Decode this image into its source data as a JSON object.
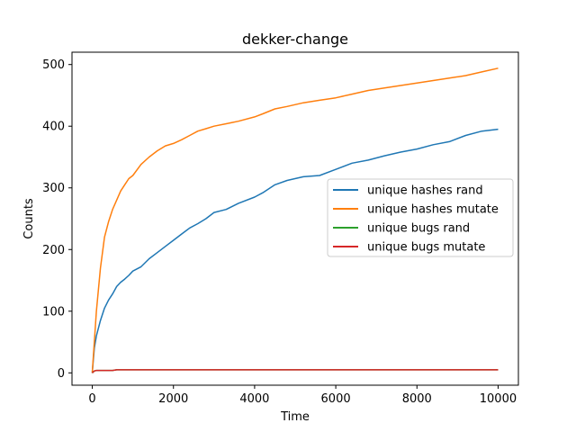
{
  "chart_data": {
    "type": "line",
    "title": "dekker-change",
    "xlabel": "Time",
    "ylabel": "Counts",
    "xlim": [
      -500,
      10500
    ],
    "ylim": [
      -20,
      520
    ],
    "xticks": [
      0,
      2000,
      4000,
      6000,
      8000,
      10000
    ],
    "yticks": [
      0,
      100,
      200,
      300,
      400,
      500
    ],
    "grid": false,
    "legend_position": "center-right",
    "series": [
      {
        "name": "unique hashes rand",
        "color": "#1f77b4",
        "x": [
          0,
          50,
          100,
          200,
          300,
          400,
          500,
          600,
          700,
          800,
          900,
          1000,
          1200,
          1400,
          1600,
          1800,
          2000,
          2200,
          2400,
          2600,
          2800,
          3000,
          3300,
          3600,
          4000,
          4200,
          4500,
          4800,
          5200,
          5600,
          6000,
          6400,
          6800,
          7200,
          7600,
          8000,
          8400,
          8800,
          9200,
          9600,
          10000
        ],
        "y": [
          0,
          40,
          60,
          85,
          105,
          118,
          128,
          140,
          147,
          152,
          158,
          165,
          172,
          185,
          195,
          205,
          215,
          225,
          235,
          242,
          250,
          260,
          265,
          275,
          285,
          292,
          305,
          312,
          318,
          320,
          330,
          340,
          345,
          352,
          358,
          363,
          370,
          375,
          385,
          392,
          395
        ]
      },
      {
        "name": "unique hashes mutate",
        "color": "#ff7f0e",
        "x": [
          0,
          50,
          100,
          200,
          300,
          400,
          500,
          600,
          700,
          800,
          900,
          1000,
          1200,
          1400,
          1600,
          1800,
          2000,
          2200,
          2400,
          2600,
          2800,
          3000,
          3300,
          3600,
          4000,
          4200,
          4500,
          4800,
          5200,
          5600,
          6000,
          6400,
          6800,
          7200,
          7600,
          8000,
          8400,
          8800,
          9200,
          9600,
          10000
        ],
        "y": [
          0,
          50,
          100,
          170,
          220,
          245,
          265,
          280,
          295,
          305,
          315,
          320,
          338,
          350,
          360,
          368,
          372,
          378,
          385,
          392,
          396,
          400,
          404,
          408,
          415,
          420,
          428,
          432,
          438,
          442,
          446,
          452,
          458,
          462,
          466,
          470,
          474,
          478,
          482,
          488,
          494
        ]
      },
      {
        "name": "unique bugs rand",
        "color": "#2ca02c",
        "x": [
          0,
          50,
          100,
          300,
          500,
          600,
          10000
        ],
        "y": [
          0,
          3,
          4,
          4,
          4,
          5,
          5
        ]
      },
      {
        "name": "unique bugs mutate",
        "color": "#d62728",
        "x": [
          0,
          50,
          100,
          300,
          500,
          600,
          10000
        ],
        "y": [
          0,
          3,
          4,
          4,
          4,
          5,
          5
        ]
      }
    ]
  }
}
